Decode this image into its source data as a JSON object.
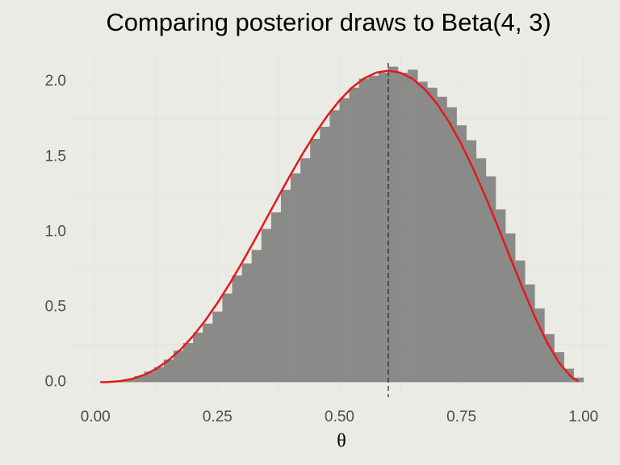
{
  "chart_data": {
    "type": "histogram",
    "title": "Comparing posterior draws to Beta(4, 3)",
    "x_label": "θ",
    "bins": [
      0,
      0.02,
      0.04,
      0.06,
      0.08,
      0.1,
      0.12,
      0.14,
      0.16,
      0.18,
      0.2,
      0.22,
      0.24,
      0.26,
      0.28,
      0.3,
      0.32,
      0.34,
      0.36,
      0.38,
      0.4,
      0.42,
      0.44,
      0.46,
      0.48,
      0.5,
      0.52,
      0.54,
      0.56,
      0.58,
      0.6,
      0.62,
      0.64,
      0.66,
      0.68,
      0.7,
      0.72,
      0.74,
      0.76,
      0.78,
      0.8,
      0.82,
      0.84,
      0.86,
      0.88,
      0.9,
      0.92,
      0.94,
      0.96,
      0.98,
      1.0
    ],
    "values": [
      0.0,
      0.0,
      0.01,
      0.02,
      0.04,
      0.07,
      0.1,
      0.15,
      0.21,
      0.26,
      0.33,
      0.39,
      0.47,
      0.59,
      0.71,
      0.79,
      0.88,
      1.02,
      1.13,
      1.28,
      1.39,
      1.49,
      1.62,
      1.7,
      1.81,
      1.89,
      1.96,
      2.02,
      2.04,
      2.06,
      2.1,
      2.06,
      2.08,
      2.0,
      1.96,
      1.9,
      1.83,
      1.71,
      1.61,
      1.49,
      1.37,
      1.15,
      0.99,
      0.81,
      0.65,
      0.49,
      0.32,
      0.2,
      0.09,
      0.03
    ],
    "color": "#8a8a88",
    "density_curve": {
      "color": "#e41a1c",
      "x": [
        0.01,
        0.025,
        0.05,
        0.075,
        0.1,
        0.125,
        0.15,
        0.175,
        0.2,
        0.225,
        0.25,
        0.275,
        0.3,
        0.325,
        0.35,
        0.375,
        0.4,
        0.425,
        0.45,
        0.475,
        0.5,
        0.525,
        0.55,
        0.575,
        0.6,
        0.625,
        0.65,
        0.675,
        0.7,
        0.725,
        0.75,
        0.775,
        0.8,
        0.825,
        0.85,
        0.875,
        0.9,
        0.925,
        0.95,
        0.975,
        0.99
      ],
      "values": [
        0.0001,
        0.0009,
        0.0068,
        0.0217,
        0.0486,
        0.0897,
        0.1463,
        0.2189,
        0.3072,
        0.4105,
        0.5273,
        0.6559,
        0.7938,
        0.9384,
        1.0869,
        1.236,
        1.3824,
        1.5228,
        1.6539,
        1.7724,
        1.875,
        1.9589,
        2.0215,
        2.0603,
        2.0736,
        2.0599,
        2.0185,
        1.9491,
        1.8522,
        1.7292,
        1.582,
        1.4139,
        1.2288,
        1.0318,
        0.8291,
        0.6281,
        0.4374,
        0.2671,
        0.1286,
        0.0348,
        0.0058
      ]
    },
    "vline": 0.6,
    "xlim": [
      -0.05,
      1.05
    ],
    "ylim": [
      -0.1,
      2.2
    ],
    "xticks": [
      {
        "value": 0,
        "label": "0.00"
      },
      {
        "value": 0.25,
        "label": "0.25"
      },
      {
        "value": 0.5,
        "label": "0.50"
      },
      {
        "value": 0.75,
        "label": "0.75"
      },
      {
        "value": 1,
        "label": "1.00"
      }
    ],
    "yticks": [
      {
        "value": 0,
        "label": "0.0"
      },
      0.5,
      {
        "value": 1,
        "label": "1.0"
      },
      1.5,
      {
        "value": 2,
        "label": "2.0"
      }
    ],
    "grid": true
  }
}
